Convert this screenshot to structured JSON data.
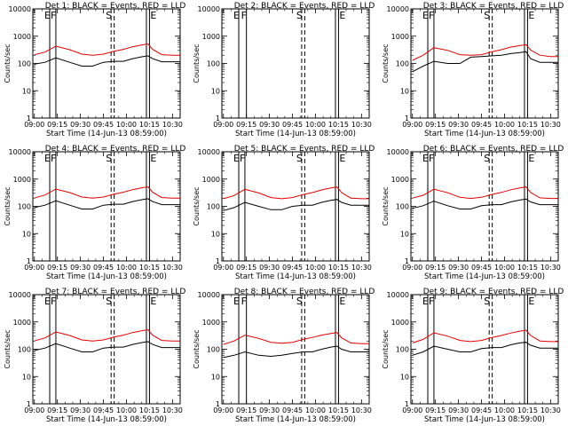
{
  "figure": {
    "x_tick_labels": [
      "09:00",
      "09:15",
      "09:30",
      "09:45",
      "10:00",
      "10:15",
      "10:30"
    ],
    "y_tick_labels": [
      "1",
      "10",
      "100",
      "1000",
      "10000"
    ],
    "ylabel": "Counts/sec",
    "xlabel": "Start Time (14-Jun-13 08:59:00)",
    "marker_labels": [
      "E",
      "F",
      "S",
      "E"
    ],
    "colors": {
      "events": "#000000",
      "lld": "#e00000"
    }
  },
  "chart_data": [
    {
      "type": "line",
      "title": "Det 1: BLACK = Events, RED = LLD",
      "xlim": [
        "08:59",
        "10:35"
      ],
      "ylim": [
        1,
        10000
      ],
      "yscale": "log",
      "x": [
        "09:00",
        "09:07",
        "09:14",
        "09:23",
        "09:31",
        "09:38",
        "09:45",
        "09:52",
        "09:58",
        "10:04",
        "10:10",
        "10:14",
        "10:17",
        "10:23",
        "10:30",
        "10:35"
      ],
      "series": [
        {
          "values": [
            95,
            110,
            160,
            110,
            80,
            80,
            110,
            120,
            120,
            150,
            175,
            190,
            150,
            115,
            115,
            115
          ]
        },
        {
          "values": [
            210,
            260,
            430,
            320,
            220,
            200,
            220,
            280,
            330,
            410,
            480,
            520,
            330,
            210,
            200,
            200
          ]
        }
      ],
      "markers": {
        "solid": [
          "09:10",
          "09:14",
          "10:13",
          "10:15"
        ],
        "dashed": [
          "09:50",
          "09:52"
        ]
      }
    },
    {
      "type": "line",
      "title": "Det 2: BLACK = Events, RED = LLD",
      "xlim": [
        "08:59",
        "10:35"
      ],
      "ylim": [
        1,
        10000
      ],
      "yscale": "log",
      "x": [],
      "series": [],
      "markers": {
        "solid": [
          "09:10",
          "09:15",
          "10:13",
          "10:15"
        ],
        "dashed": [
          "09:51",
          "09:53"
        ]
      }
    },
    {
      "type": "line",
      "title": "Det 3: BLACK = Events, RED = LLD",
      "xlim": [
        "08:59",
        "10:35"
      ],
      "ylim": [
        1,
        10000
      ],
      "yscale": "log",
      "x": [
        "09:00",
        "09:07",
        "09:14",
        "09:23",
        "09:31",
        "09:38",
        "09:45",
        "09:52",
        "09:58",
        "10:04",
        "10:10",
        "10:14",
        "10:17",
        "10:23",
        "10:30",
        "10:35"
      ],
      "series": [
        {
          "values": [
            50,
            80,
            120,
            100,
            100,
            170,
            180,
            190,
            200,
            230,
            250,
            270,
            150,
            110,
            110,
            110
          ]
        },
        {
          "values": [
            130,
            200,
            380,
            300,
            210,
            200,
            210,
            270,
            320,
            400,
            450,
            490,
            310,
            200,
            180,
            180
          ]
        }
      ],
      "markers": {
        "solid": [
          "09:10",
          "09:14",
          "10:13",
          "10:15"
        ],
        "dashed": [
          "09:50",
          "09:52"
        ]
      }
    },
    {
      "type": "line",
      "title": "Det 4: BLACK = Events, RED = LLD",
      "xlim": [
        "08:59",
        "10:35"
      ],
      "ylim": [
        1,
        10000
      ],
      "yscale": "log",
      "x": [
        "09:00",
        "09:07",
        "09:14",
        "09:23",
        "09:31",
        "09:38",
        "09:45",
        "09:52",
        "09:58",
        "10:04",
        "10:10",
        "10:14",
        "10:17",
        "10:23",
        "10:30",
        "10:35"
      ],
      "series": [
        {
          "values": [
            90,
            110,
            160,
            110,
            80,
            80,
            110,
            120,
            120,
            150,
            175,
            190,
            150,
            115,
            115,
            115
          ]
        },
        {
          "values": [
            200,
            260,
            430,
            320,
            220,
            200,
            220,
            280,
            330,
            410,
            480,
            520,
            330,
            210,
            200,
            200
          ]
        }
      ],
      "markers": {
        "solid": [
          "09:10",
          "09:14",
          "10:13",
          "10:15"
        ],
        "dashed": [
          "09:50",
          "09:52"
        ]
      }
    },
    {
      "type": "line",
      "title": "Det 5: BLACK = Events, RED = LLD",
      "xlim": [
        "08:59",
        "10:35"
      ],
      "ylim": [
        1,
        10000
      ],
      "yscale": "log",
      "x": [
        "09:00",
        "09:07",
        "09:14",
        "09:23",
        "09:31",
        "09:38",
        "09:45",
        "09:52",
        "09:58",
        "10:04",
        "10:10",
        "10:14",
        "10:17",
        "10:23",
        "10:30",
        "10:35"
      ],
      "series": [
        {
          "values": [
            70,
            90,
            140,
            100,
            75,
            75,
            100,
            110,
            110,
            140,
            165,
            180,
            140,
            110,
            110,
            110
          ]
        },
        {
          "values": [
            190,
            250,
            420,
            310,
            210,
            190,
            210,
            270,
            320,
            400,
            470,
            510,
            320,
            200,
            190,
            190
          ]
        }
      ],
      "markers": {
        "solid": [
          "09:10",
          "09:14",
          "10:13",
          "10:15"
        ],
        "dashed": [
          "09:51",
          "09:53"
        ]
      }
    },
    {
      "type": "line",
      "title": "Det 6: BLACK = Events, RED = LLD",
      "xlim": [
        "08:59",
        "10:35"
      ],
      "ylim": [
        1,
        10000
      ],
      "yscale": "log",
      "x": [
        "09:00",
        "09:07",
        "09:14",
        "09:23",
        "09:31",
        "09:38",
        "09:45",
        "09:52",
        "09:58",
        "10:04",
        "10:10",
        "10:14",
        "10:17",
        "10:23",
        "10:30",
        "10:35"
      ],
      "series": [
        {
          "values": [
            85,
            105,
            155,
            105,
            80,
            80,
            105,
            115,
            115,
            145,
            170,
            185,
            145,
            115,
            115,
            115
          ]
        },
        {
          "values": [
            200,
            255,
            425,
            315,
            215,
            195,
            215,
            275,
            325,
            405,
            475,
            515,
            325,
            205,
            195,
            195
          ]
        }
      ],
      "markers": {
        "solid": [
          "09:10",
          "09:14",
          "10:13",
          "10:15"
        ],
        "dashed": [
          "09:50",
          "09:52"
        ]
      }
    },
    {
      "type": "line",
      "title": "Det 7: BLACK = Events, RED = LLD",
      "xlim": [
        "08:59",
        "10:35"
      ],
      "ylim": [
        1,
        10000
      ],
      "yscale": "log",
      "x": [
        "09:00",
        "09:07",
        "09:14",
        "09:23",
        "09:31",
        "09:38",
        "09:45",
        "09:52",
        "09:58",
        "10:04",
        "10:10",
        "10:14",
        "10:17",
        "10:23",
        "10:30",
        "10:35"
      ],
      "series": [
        {
          "values": [
            90,
            110,
            160,
            110,
            80,
            80,
            110,
            120,
            120,
            150,
            175,
            190,
            150,
            115,
            115,
            115
          ]
        },
        {
          "values": [
            200,
            260,
            430,
            320,
            220,
            200,
            220,
            280,
            330,
            410,
            480,
            520,
            330,
            210,
            200,
            200
          ]
        }
      ],
      "markers": {
        "solid": [
          "09:10",
          "09:14",
          "10:13",
          "10:15"
        ],
        "dashed": [
          "09:50",
          "09:52"
        ]
      }
    },
    {
      "type": "line",
      "title": "Det 8: BLACK = Events, RED = LLD",
      "xlim": [
        "08:59",
        "10:35"
      ],
      "ylim": [
        1,
        10000
      ],
      "yscale": "log",
      "x": [
        "09:00",
        "09:07",
        "09:14",
        "09:23",
        "09:31",
        "09:38",
        "09:45",
        "09:52",
        "09:58",
        "10:04",
        "10:10",
        "10:14",
        "10:17",
        "10:23",
        "10:30",
        "10:35"
      ],
      "series": [
        {
          "values": [
            50,
            60,
            80,
            60,
            55,
            60,
            70,
            80,
            80,
            100,
            120,
            130,
            100,
            80,
            80,
            80
          ]
        },
        {
          "values": [
            150,
            200,
            330,
            250,
            180,
            165,
            180,
            230,
            270,
            330,
            380,
            410,
            260,
            170,
            160,
            160
          ]
        }
      ],
      "markers": {
        "solid": [
          "09:10",
          "09:15",
          "10:13",
          "10:15"
        ],
        "dashed": [
          "09:51",
          "09:53"
        ]
      }
    },
    {
      "type": "line",
      "title": "Det 9: BLACK = Events, RED = LLD",
      "xlim": [
        "08:59",
        "10:35"
      ],
      "ylim": [
        1,
        10000
      ],
      "yscale": "log",
      "x": [
        "09:00",
        "09:07",
        "09:14",
        "09:23",
        "09:31",
        "09:38",
        "09:45",
        "09:52",
        "09:58",
        "10:04",
        "10:10",
        "10:14",
        "10:17",
        "10:23",
        "10:30",
        "10:35"
      ],
      "series": [
        {
          "values": [
            60,
            80,
            130,
            100,
            80,
            80,
            105,
            115,
            115,
            145,
            170,
            180,
            140,
            110,
            110,
            110
          ]
        },
        {
          "values": [
            170,
            230,
            400,
            300,
            210,
            190,
            210,
            270,
            320,
            390,
            460,
            500,
            320,
            200,
            190,
            190
          ]
        }
      ],
      "markers": {
        "solid": [
          "09:10",
          "09:14",
          "10:13",
          "10:15"
        ],
        "dashed": [
          "09:50",
          "09:52"
        ]
      }
    }
  ]
}
